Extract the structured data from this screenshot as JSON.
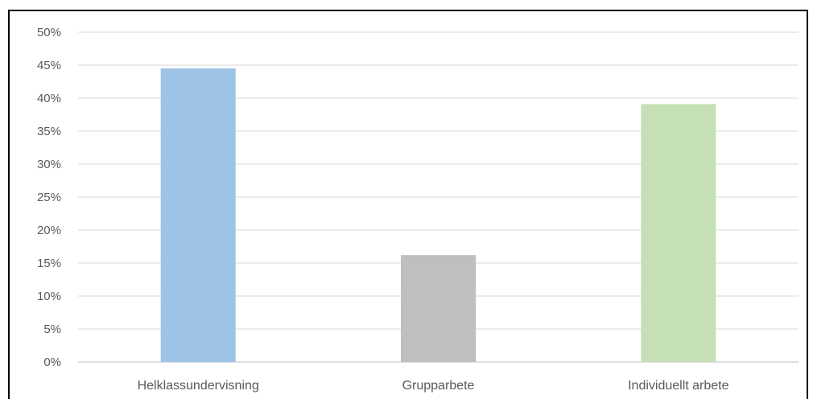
{
  "chart_data": {
    "type": "bar",
    "title": "",
    "xlabel": "",
    "ylabel": "",
    "categories": [
      "Helklassundervisning",
      "Grupparbete",
      "Individuellt arbete"
    ],
    "values": [
      44.5,
      16.2,
      39.1
    ],
    "colors": [
      "#9dc3e6",
      "#bfbfbf",
      "#c5e0b4"
    ],
    "ylim": [
      0,
      50
    ],
    "yticks": [
      0,
      5,
      10,
      15,
      20,
      25,
      30,
      35,
      40,
      45,
      50
    ],
    "ytick_format": "%",
    "grid": true,
    "legend": "none"
  }
}
